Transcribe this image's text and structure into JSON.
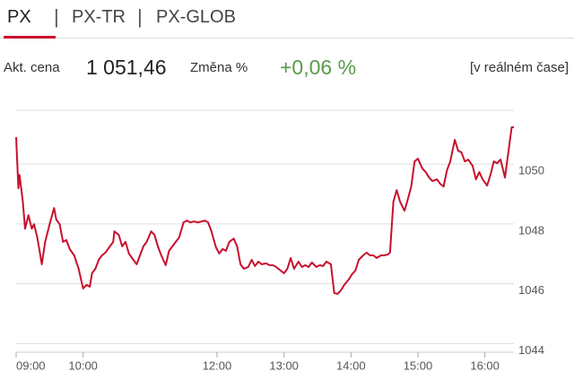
{
  "tabs": [
    "PX",
    "PX-TR",
    "PX-GLOB"
  ],
  "quote": {
    "price_label": "Akt. cena",
    "price": "1 051,46",
    "change_label": "Změna %",
    "change": "+0,06 %",
    "realtime": "[v reálném čase]"
  },
  "chart_data": {
    "type": "line",
    "color": "#c8102e",
    "x": [
      540,
      542,
      543,
      546,
      548,
      551,
      554,
      556,
      559,
      563,
      566,
      570,
      574,
      576,
      579,
      582,
      585,
      588,
      592,
      596,
      600,
      603,
      606,
      608,
      611,
      614,
      617,
      620,
      624,
      627,
      628,
      632,
      635,
      638,
      641,
      645,
      648,
      651,
      654,
      657,
      661,
      664,
      667,
      670,
      674,
      677,
      680,
      683,
      686,
      690,
      693,
      696,
      699,
      703,
      706,
      709,
      712,
      715,
      719,
      722,
      725,
      728,
      731,
      735,
      738,
      741,
      744,
      748,
      751,
      754,
      757,
      760,
      764,
      767,
      770,
      773,
      777,
      780,
      783,
      786,
      789,
      793,
      796,
      799,
      802,
      805,
      809,
      812,
      815,
      818,
      822,
      825,
      828,
      831,
      834,
      838,
      841,
      844,
      847,
      851,
      854,
      857,
      860,
      863,
      867,
      870,
      873,
      875,
      878,
      881,
      884,
      888,
      891,
      894,
      897,
      900,
      904,
      907,
      910,
      913,
      917,
      920,
      923,
      926,
      929,
      933,
      936,
      939,
      942,
      945,
      949,
      952,
      955,
      958,
      962,
      965,
      968,
      971,
      974,
      978,
      981,
      984,
      986
    ],
    "values": [
      1050.9,
      1049.19,
      1049.64,
      1048.74,
      1047.84,
      1048.29,
      1047.84,
      1047.99,
      1047.54,
      1046.65,
      1047.4,
      1047.99,
      1048.53,
      1048.14,
      1047.99,
      1047.4,
      1047.46,
      1047.16,
      1046.95,
      1046.5,
      1045.84,
      1045.96,
      1045.9,
      1046.35,
      1046.5,
      1046.8,
      1046.95,
      1047.04,
      1047.25,
      1047.4,
      1047.75,
      1047.63,
      1047.25,
      1047.4,
      1047.01,
      1046.8,
      1046.65,
      1046.95,
      1047.25,
      1047.4,
      1047.75,
      1047.63,
      1047.25,
      1046.95,
      1046.62,
      1047.1,
      1047.25,
      1047.4,
      1047.54,
      1048.05,
      1048.11,
      1048.05,
      1048.08,
      1048.05,
      1048.08,
      1048.11,
      1048.05,
      1047.75,
      1047.22,
      1047.01,
      1047.16,
      1047.1,
      1047.4,
      1047.51,
      1047.25,
      1046.65,
      1046.5,
      1046.56,
      1046.8,
      1046.59,
      1046.74,
      1046.65,
      1046.68,
      1046.62,
      1046.62,
      1046.56,
      1046.44,
      1046.35,
      1046.5,
      1046.86,
      1046.5,
      1046.74,
      1046.56,
      1046.62,
      1046.56,
      1046.71,
      1046.56,
      1046.62,
      1046.59,
      1046.74,
      1046.65,
      1045.69,
      1045.66,
      1045.78,
      1045.96,
      1046.14,
      1046.32,
      1046.44,
      1046.8,
      1046.95,
      1047.04,
      1046.95,
      1046.95,
      1046.86,
      1046.95,
      1046.95,
      1046.98,
      1047.04,
      1048.74,
      1049.13,
      1048.74,
      1048.44,
      1048.83,
      1049.25,
      1050.09,
      1050.18,
      1049.85,
      1049.73,
      1049.55,
      1049.43,
      1049.49,
      1049.34,
      1049.25,
      1049.79,
      1050.09,
      1050.81,
      1050.45,
      1050.39,
      1050.09,
      1050.15,
      1049.94,
      1049.49,
      1049.73,
      1049.49,
      1049.28,
      1049.64,
      1050.09,
      1050.03,
      1050.15,
      1049.55,
      1050.39,
      1051.23,
      1051.23
    ],
    "xlim": [
      540,
      986
    ],
    "xticks": [
      {
        "value": 540,
        "label": "09:00"
      },
      {
        "value": 600,
        "label": "10:00"
      },
      {
        "value": 720,
        "label": "12:00"
      },
      {
        "value": 780,
        "label": "13:00"
      },
      {
        "value": 840,
        "label": "14:00"
      },
      {
        "value": 900,
        "label": "15:00"
      },
      {
        "value": 960,
        "label": "16:00"
      }
    ],
    "ylim": [
      1043.71,
      1051.8
    ],
    "yticks": [
      1044,
      1046,
      1048,
      1050
    ],
    "grid": true
  }
}
